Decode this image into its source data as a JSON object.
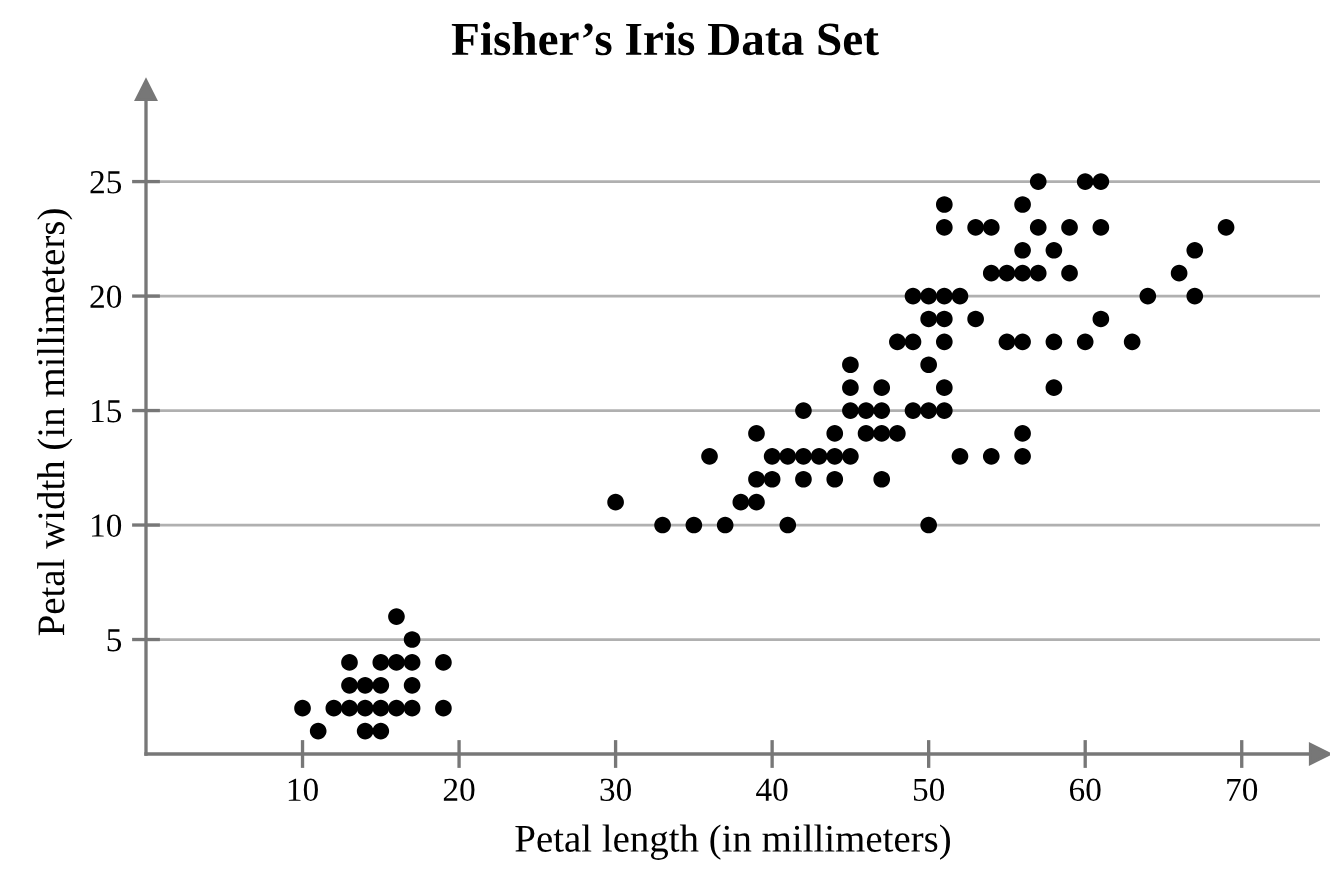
{
  "chart_data": {
    "type": "scatter",
    "title": "Fisher’s Iris Data Set",
    "xlabel": "Petal length (in millimeters)",
    "ylabel": "Petal width (in millimeters)",
    "series": [
      {
        "color": "#000000",
        "x": [
          16,
          17,
          13,
          15,
          16,
          17,
          19,
          13,
          14,
          15,
          17,
          10,
          12,
          13,
          14,
          15,
          16,
          17,
          19,
          11,
          14,
          15,
          33,
          35,
          37,
          41,
          50,
          30,
          38,
          39,
          39,
          40,
          42,
          44,
          47,
          36,
          40,
          41,
          42,
          43,
          44,
          45,
          52,
          54,
          56,
          39,
          44,
          46,
          47,
          48,
          56,
          42,
          45,
          46,
          47,
          49,
          50,
          51,
          45,
          47,
          51,
          58,
          45,
          50,
          48,
          49,
          51,
          55,
          56,
          58,
          60,
          63,
          50,
          51,
          53,
          61,
          49,
          50,
          51,
          52,
          64,
          67,
          54,
          55,
          56,
          57,
          59,
          66,
          56,
          58,
          67,
          51,
          53,
          54,
          57,
          59,
          61,
          69,
          51,
          56,
          57,
          60,
          61
        ],
        "values": [
          6,
          5,
          4,
          4,
          4,
          4,
          4,
          3,
          3,
          3,
          3,
          2,
          2,
          2,
          2,
          2,
          2,
          2,
          2,
          1,
          1,
          1,
          10,
          10,
          10,
          10,
          10,
          11,
          11,
          11,
          12,
          12,
          12,
          12,
          12,
          13,
          13,
          13,
          13,
          13,
          13,
          13,
          13,
          13,
          13,
          14,
          14,
          14,
          14,
          14,
          14,
          15,
          15,
          15,
          15,
          15,
          15,
          15,
          16,
          16,
          16,
          16,
          17,
          17,
          18,
          18,
          18,
          18,
          18,
          18,
          18,
          18,
          19,
          19,
          19,
          19,
          20,
          20,
          20,
          20,
          20,
          20,
          21,
          21,
          21,
          21,
          21,
          21,
          22,
          22,
          22,
          23,
          23,
          23,
          23,
          23,
          23,
          23,
          24,
          24,
          25,
          25,
          25
        ]
      }
    ],
    "xlim": [
      0,
      75
    ],
    "ylim": [
      0,
      29
    ],
    "xticks": [
      10,
      20,
      30,
      40,
      50,
      60,
      70
    ],
    "yticks": [
      5,
      10,
      15,
      20,
      25
    ],
    "grid": "y",
    "marker": "circle"
  }
}
